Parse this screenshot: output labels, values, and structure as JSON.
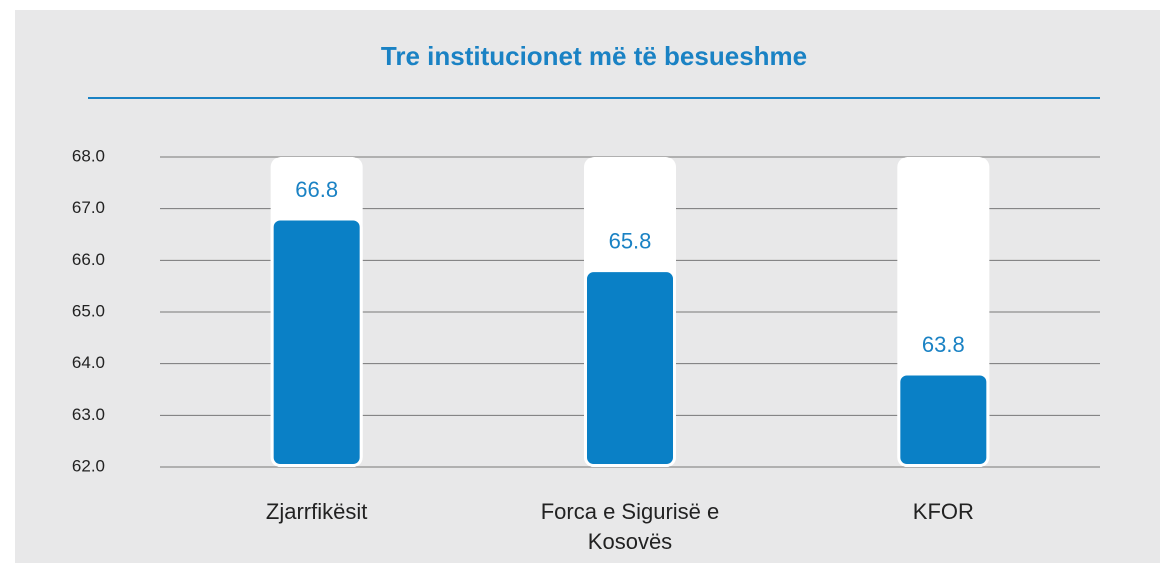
{
  "chart_data": {
    "type": "bar",
    "title": "Tre institucionet më të besueshme",
    "categories": [
      "Zjarrfikësit",
      "Forca e Sigurisë e Kosovës",
      "KFOR"
    ],
    "values": [
      66.8,
      65.8,
      63.8
    ],
    "color": "#0a80c6",
    "ylim": [
      62,
      68
    ],
    "yticks": [
      {
        "value": 62,
        "label": "62.0"
      },
      {
        "value": 63,
        "label": "63.0"
      },
      {
        "value": 64,
        "label": "64.0"
      },
      {
        "value": 65,
        "label": "65.0"
      },
      {
        "value": 66,
        "label": "66.0"
      },
      {
        "value": 67,
        "label": "67.0"
      },
      {
        "value": 68,
        "label": "68.0"
      }
    ],
    "grid": true
  }
}
